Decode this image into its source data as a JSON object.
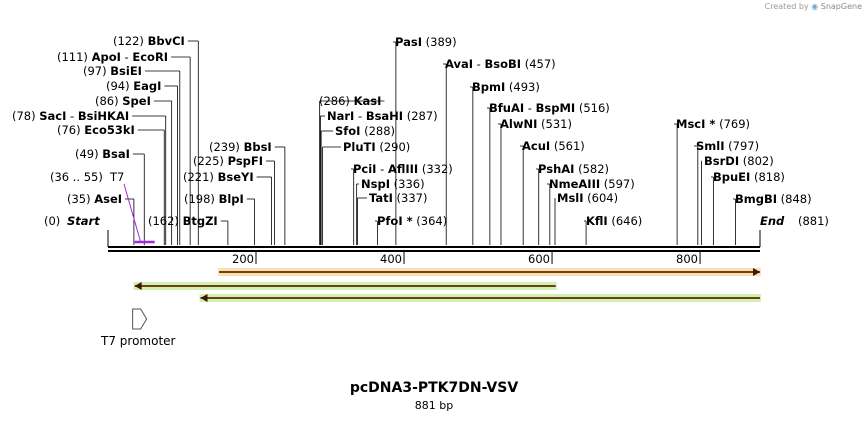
{
  "credit": {
    "prefix": "Created by",
    "brand": "SnapGene"
  },
  "sequence": {
    "name": "pcDNA3-PTK7DN-VSV",
    "length_label": "881 bp",
    "length": 881
  },
  "ends": {
    "start": {
      "pos": "(0)",
      "name": "Start"
    },
    "end": {
      "name": "End",
      "pos": "(881)"
    }
  },
  "ruler_ticks": [
    "200",
    "400",
    "600",
    "800"
  ],
  "sites": [
    {
      "pos": "(122)",
      "name": "BbvCI",
      "bp": 122
    },
    {
      "pos": "(111)",
      "name": "ApoI",
      "dash": " - ",
      "name2": "EcoRI",
      "bp": 111
    },
    {
      "pos": "(97)",
      "name": "BsiEI",
      "bp": 97
    },
    {
      "pos": "(94)",
      "name": "EagI",
      "bp": 94
    },
    {
      "pos": "(86)",
      "name": "SpeI",
      "bp": 86
    },
    {
      "pos": "(78)",
      "name": "SacI",
      "dash": " - ",
      "name2": "BsiHKAI",
      "bp": 78
    },
    {
      "pos": "(76)",
      "name": "Eco53kI",
      "bp": 76
    },
    {
      "pos": "(49)",
      "name": "BsaI",
      "bp": 49
    },
    {
      "pos": "(35)",
      "name": "AseI",
      "bp": 35
    },
    {
      "pos": "(162)",
      "name": "BtgZI",
      "bp": 162
    },
    {
      "pos": "(198)",
      "name": "BlpI",
      "bp": 198
    },
    {
      "pos": "(221)",
      "name": "BseYI",
      "bp": 221
    },
    {
      "pos": "(225)",
      "name": "PspFI",
      "bp": 225
    },
    {
      "pos": "(239)",
      "name": "BbsI",
      "bp": 239
    },
    {
      "pos": "(286)",
      "name": "KasI",
      "bp": 286
    },
    {
      "name": "NarI",
      "dash": " - ",
      "name2": "BsaHI",
      "pos": "(287)",
      "bp": 287
    },
    {
      "name": "SfoI",
      "pos": "(288)",
      "bp": 288
    },
    {
      "name": "PluTI",
      "pos": "(290)",
      "bp": 290
    },
    {
      "name": "PciI",
      "dash": " - ",
      "name2": "AflIII",
      "pos": "(332)",
      "bp": 332
    },
    {
      "name": "NspI",
      "pos": "(336)",
      "bp": 336
    },
    {
      "name": "TatI",
      "pos": "(337)",
      "bp": 337
    },
    {
      "name": "PfoI",
      "star": " *",
      "pos": "(364)",
      "bp": 364
    },
    {
      "name": "PasI",
      "pos": "(389)",
      "bp": 389
    },
    {
      "name": "AvaI",
      "dash": " - ",
      "name2": "BsoBI",
      "pos": "(457)",
      "bp": 457
    },
    {
      "name": "BpmI",
      "pos": "(493)",
      "bp": 493
    },
    {
      "name": "BfuAI",
      "dash": " - ",
      "name2": "BspMI",
      "pos": "(516)",
      "bp": 516
    },
    {
      "name": "AlwNI",
      "pos": "(531)",
      "bp": 531
    },
    {
      "name": "AcuI",
      "pos": "(561)",
      "bp": 561
    },
    {
      "name": "PshAI",
      "pos": "(582)",
      "bp": 582
    },
    {
      "name": "NmeAIII",
      "pos": "(597)",
      "bp": 597
    },
    {
      "name": "MslI",
      "pos": "(604)",
      "bp": 604
    },
    {
      "name": "KflI",
      "pos": "(646)",
      "bp": 646
    },
    {
      "name": "MscI",
      "star": " *",
      "pos": "(769)",
      "bp": 769
    },
    {
      "name": "SmlI",
      "pos": "(797)",
      "bp": 797
    },
    {
      "name": "BsrDI",
      "pos": "(802)",
      "bp": 802
    },
    {
      "name": "BpuEI",
      "pos": "(818)",
      "bp": 818
    },
    {
      "name": "BmgBI",
      "pos": "(848)",
      "bp": 848
    }
  ],
  "primer": {
    "range": "(36 .. 55)",
    "name": "T7",
    "start_bp": 36,
    "end_bp": 55,
    "color": "#9b30d9"
  },
  "features": [
    {
      "name": "orange-feature",
      "start_bp": 150,
      "end_bp": 881,
      "direction": "forward",
      "color": "#f5a623"
    },
    {
      "name": "green-feature-1",
      "start_bp": 36,
      "end_bp": 605,
      "direction": "reverse",
      "color": "#7ed321"
    },
    {
      "name": "green-feature-2",
      "start_bp": 125,
      "end_bp": 881,
      "direction": "reverse",
      "color": "#7ed321"
    }
  ],
  "promoter": {
    "label": "T7 promoter",
    "bp": 36
  }
}
